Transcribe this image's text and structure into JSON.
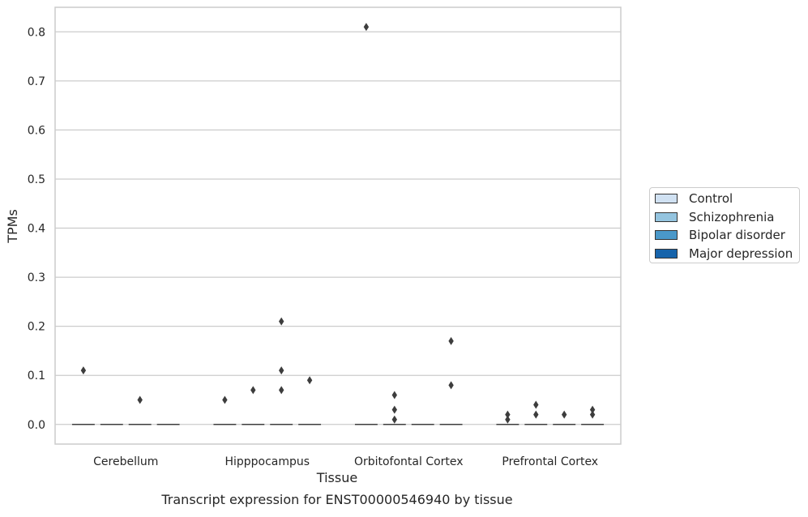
{
  "chart_data": {
    "type": "box",
    "caption": "Transcript expression for ENST00000546940 by tissue",
    "xlabel": "Tissue",
    "ylabel": "TPMs",
    "ylim": [
      -0.04,
      0.85
    ],
    "yticks": [
      0.0,
      0.1,
      0.2,
      0.3,
      0.4,
      0.5,
      0.6,
      0.7,
      0.8
    ],
    "ytick_labels": [
      "0.0",
      "0.1",
      "0.2",
      "0.3",
      "0.4",
      "0.5",
      "0.6",
      "0.7",
      "0.8"
    ],
    "grid": "horizontal",
    "legend_position": "right",
    "categories": [
      "Cerebellum",
      "Hipppocampus",
      "Orbitofontal Cortex",
      "Prefrontal Cortex"
    ],
    "series": [
      {
        "name": "Control",
        "color": "#d0e1f2",
        "median": [
          0,
          0,
          0,
          0
        ],
        "outliers": [
          [
            0.11
          ],
          [
            0.05
          ],
          [
            0.81
          ],
          [
            0.01,
            0.02
          ]
        ]
      },
      {
        "name": "Schizophrenia",
        "color": "#94c4df",
        "median": [
          0,
          0,
          0,
          0
        ],
        "outliers": [
          [],
          [
            0.07
          ],
          [
            0.01,
            0.03,
            0.06
          ],
          [
            0.02,
            0.04
          ]
        ]
      },
      {
        "name": "Bipolar disorder",
        "color": "#4a98c9",
        "median": [
          0,
          0,
          0,
          0
        ],
        "outliers": [
          [
            0.05
          ],
          [
            0.07,
            0.11,
            0.21
          ],
          [],
          [
            0.02
          ]
        ]
      },
      {
        "name": "Major depression",
        "color": "#1764ab",
        "median": [
          0,
          0,
          0,
          0
        ],
        "outliers": [
          [],
          [
            0.09
          ],
          [
            0.08,
            0.17
          ],
          [
            0.02,
            0.03
          ]
        ]
      }
    ]
  }
}
